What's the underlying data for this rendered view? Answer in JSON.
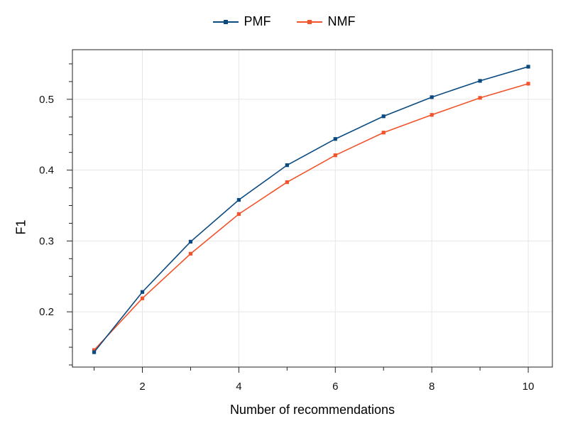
{
  "chart_data": {
    "type": "line",
    "xlabel": "Number of recommendations",
    "ylabel": "F1",
    "x": [
      1,
      2,
      3,
      4,
      5,
      6,
      7,
      8,
      9,
      10
    ],
    "series": [
      {
        "name": "PMF",
        "color": "#0a4a80",
        "values": [
          0.143,
          0.228,
          0.299,
          0.358,
          0.407,
          0.444,
          0.476,
          0.503,
          0.526,
          0.546
        ]
      },
      {
        "name": "NMF",
        "color": "#f2532a",
        "values": [
          0.146,
          0.219,
          0.282,
          0.338,
          0.383,
          0.421,
          0.453,
          0.478,
          0.502,
          0.522
        ]
      }
    ],
    "xlim": [
      0.55,
      10.5
    ],
    "ylim": [
      0.122,
      0.57
    ],
    "xticks": [
      2,
      4,
      6,
      8,
      10
    ],
    "xminor": [
      1,
      3,
      5,
      7,
      9
    ],
    "yticks": [
      0.2,
      0.3,
      0.4,
      0.5
    ],
    "yminor": [
      0.125,
      0.15,
      0.175,
      0.225,
      0.25,
      0.275,
      0.325,
      0.35,
      0.375,
      0.425,
      0.45,
      0.475,
      0.525,
      0.55
    ],
    "grid": true,
    "legend_position": "top-center"
  }
}
